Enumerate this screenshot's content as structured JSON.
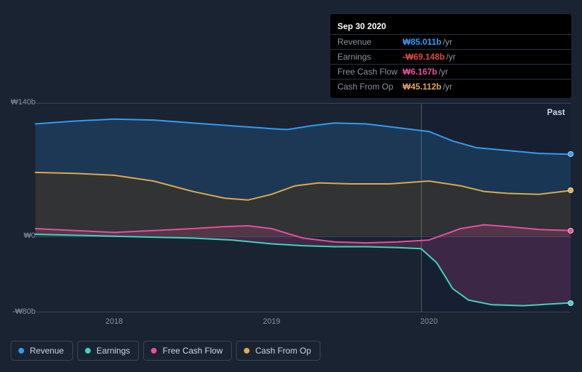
{
  "tooltip": {
    "date": "Sep 30 2020",
    "rows": [
      {
        "label": "Revenue",
        "value": "₩85.011b",
        "color": "#2f9df4",
        "unit": "/yr"
      },
      {
        "label": "Earnings",
        "value": "-₩69.148b",
        "color": "#e24b3b",
        "unit": "/yr"
      },
      {
        "label": "Free Cash Flow",
        "value": "₩6.167b",
        "color": "#e84fa0",
        "unit": "/yr"
      },
      {
        "label": "Cash From Op",
        "value": "₩45.112b",
        "color": "#e0a94a",
        "unit": "/yr"
      }
    ]
  },
  "chart": {
    "type": "line-area",
    "background_color": "#1a2332",
    "grid_color": "#3a4556",
    "label_color": "#8a94a6",
    "past_label": "Past",
    "y_axis": {
      "min": -80,
      "max": 140,
      "zero": 0,
      "ticks": [
        {
          "v": 140,
          "label": "₩140b"
        },
        {
          "v": 0,
          "label": "₩0"
        },
        {
          "v": -80,
          "label": "-₩80b"
        }
      ]
    },
    "x_axis": {
      "min": 2017.5,
      "max": 2020.9,
      "ticks": [
        {
          "v": 2018,
          "label": "2018"
        },
        {
          "v": 2019,
          "label": "2019"
        },
        {
          "v": 2020,
          "label": "2020"
        }
      ]
    },
    "vertical_marker_x": 2019.95,
    "future_shade_from": 2019.95,
    "series": [
      {
        "key": "revenue",
        "label": "Revenue",
        "color": "#2f9df4",
        "fill_to": "cash_from_op",
        "fill_opacity": 0.18,
        "points": [
          [
            2017.5,
            118
          ],
          [
            2017.75,
            121
          ],
          [
            2018,
            123
          ],
          [
            2018.25,
            122
          ],
          [
            2018.5,
            119
          ],
          [
            2018.75,
            116
          ],
          [
            2019,
            113
          ],
          [
            2019.1,
            112
          ],
          [
            2019.25,
            116
          ],
          [
            2019.4,
            119
          ],
          [
            2019.6,
            118
          ],
          [
            2019.75,
            115
          ],
          [
            2020,
            110
          ],
          [
            2020.15,
            100
          ],
          [
            2020.3,
            93
          ],
          [
            2020.5,
            90
          ],
          [
            2020.7,
            87
          ],
          [
            2020.9,
            86
          ]
        ]
      },
      {
        "key": "cash_from_op",
        "label": "Cash From Op",
        "color": "#e0a94a",
        "fill_to": "zero",
        "fill_opacity": 0.12,
        "points": [
          [
            2017.5,
            67
          ],
          [
            2017.75,
            66
          ],
          [
            2018,
            64
          ],
          [
            2018.25,
            58
          ],
          [
            2018.5,
            47
          ],
          [
            2018.7,
            40
          ],
          [
            2018.85,
            38
          ],
          [
            2019,
            44
          ],
          [
            2019.15,
            53
          ],
          [
            2019.3,
            56
          ],
          [
            2019.5,
            55
          ],
          [
            2019.75,
            55
          ],
          [
            2020,
            58
          ],
          [
            2020.2,
            53
          ],
          [
            2020.35,
            47
          ],
          [
            2020.5,
            45
          ],
          [
            2020.7,
            44
          ],
          [
            2020.9,
            48
          ]
        ]
      },
      {
        "key": "free_cash_flow",
        "label": "Free Cash Flow",
        "color": "#e84fa0",
        "fill_to": "earnings",
        "fill_opacity": 0.18,
        "points": [
          [
            2017.5,
            8
          ],
          [
            2017.75,
            6
          ],
          [
            2018,
            4
          ],
          [
            2018.25,
            6
          ],
          [
            2018.5,
            8
          ],
          [
            2018.7,
            10
          ],
          [
            2018.85,
            11
          ],
          [
            2019,
            8
          ],
          [
            2019.2,
            -2
          ],
          [
            2019.4,
            -6
          ],
          [
            2019.6,
            -7
          ],
          [
            2019.8,
            -6
          ],
          [
            2020,
            -4
          ],
          [
            2020.2,
            8
          ],
          [
            2020.35,
            12
          ],
          [
            2020.5,
            10
          ],
          [
            2020.7,
            7
          ],
          [
            2020.9,
            6
          ]
        ]
      },
      {
        "key": "earnings",
        "label": "Earnings",
        "color": "#3fd4c0",
        "fill_to": null,
        "points": [
          [
            2017.5,
            2
          ],
          [
            2017.75,
            1
          ],
          [
            2018,
            0
          ],
          [
            2018.25,
            -1
          ],
          [
            2018.5,
            -2
          ],
          [
            2018.75,
            -4
          ],
          [
            2019,
            -8
          ],
          [
            2019.2,
            -10
          ],
          [
            2019.4,
            -11
          ],
          [
            2019.6,
            -11
          ],
          [
            2019.8,
            -12
          ],
          [
            2019.95,
            -13
          ],
          [
            2020.05,
            -28
          ],
          [
            2020.15,
            -55
          ],
          [
            2020.25,
            -67
          ],
          [
            2020.4,
            -72
          ],
          [
            2020.6,
            -73
          ],
          [
            2020.8,
            -71
          ],
          [
            2020.9,
            -70
          ]
        ]
      }
    ]
  },
  "legend": [
    {
      "label": "Revenue",
      "color": "#2f9df4"
    },
    {
      "label": "Earnings",
      "color": "#3fd4c0"
    },
    {
      "label": "Free Cash Flow",
      "color": "#e84fa0"
    },
    {
      "label": "Cash From Op",
      "color": "#e0a94a"
    }
  ]
}
